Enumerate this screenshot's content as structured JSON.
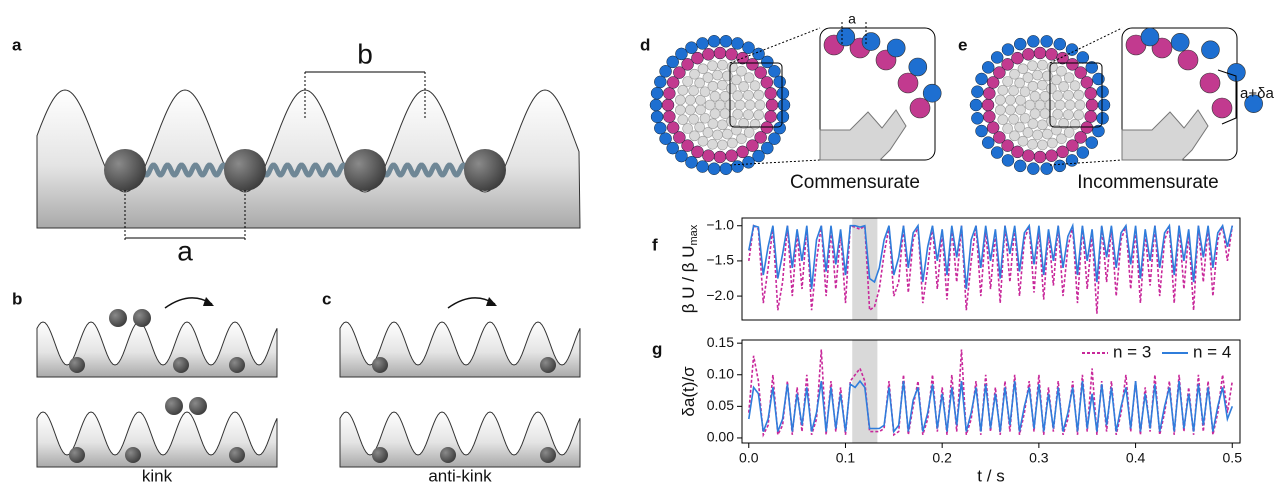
{
  "figure": {
    "panel_labels": [
      "a",
      "b",
      "c",
      "d",
      "e",
      "f",
      "g"
    ],
    "panel_a": {
      "spacing_b": "b",
      "spacing_a": "a"
    },
    "panel_b": {
      "caption": "kink"
    },
    "panel_c": {
      "caption": "anti-kink"
    },
    "panel_d": {
      "caption": "Commensurate",
      "inset_label": "a"
    },
    "panel_e": {
      "caption": "Incommensurate",
      "inset_label": "a+δa"
    }
  },
  "chart_data": [
    {
      "type": "line",
      "ylabel": "β U / β U",
      "ylabel_sub": "max",
      "x": [
        0,
        0.005,
        0.01,
        0.015,
        0.02,
        0.025,
        0.03,
        0.035,
        0.04,
        0.045,
        0.05,
        0.055,
        0.06,
        0.065,
        0.07,
        0.075,
        0.08,
        0.085,
        0.09,
        0.095,
        0.1,
        0.105,
        0.11,
        0.115,
        0.12,
        0.125,
        0.13,
        0.135,
        0.14,
        0.145,
        0.15,
        0.155,
        0.16,
        0.165,
        0.17,
        0.175,
        0.18,
        0.185,
        0.19,
        0.195,
        0.2,
        0.205,
        0.21,
        0.215,
        0.22,
        0.225,
        0.23,
        0.235,
        0.24,
        0.245,
        0.25,
        0.255,
        0.26,
        0.265,
        0.27,
        0.275,
        0.28,
        0.285,
        0.29,
        0.295,
        0.3,
        0.305,
        0.31,
        0.315,
        0.32,
        0.325,
        0.33,
        0.335,
        0.34,
        0.345,
        0.35,
        0.355,
        0.36,
        0.365,
        0.37,
        0.375,
        0.38,
        0.385,
        0.39,
        0.395,
        0.4,
        0.405,
        0.41,
        0.415,
        0.42,
        0.425,
        0.43,
        0.435,
        0.44,
        0.445,
        0.45,
        0.455,
        0.46,
        0.465,
        0.47,
        0.475,
        0.48,
        0.485,
        0.49,
        0.495,
        0.5
      ],
      "series": [
        {
          "name": "n = 3",
          "color": "#c8289a",
          "dashed": true,
          "values": [
            -1.5,
            -1.0,
            -1.05,
            -2.1,
            -1.6,
            -1.02,
            -2.2,
            -1.8,
            -1.0,
            -2.0,
            -1.1,
            -1.9,
            -1.02,
            -2.2,
            -1.5,
            -1.0,
            -2.0,
            -1.05,
            -1.9,
            -1.1,
            -2.1,
            -1.0,
            -1.02,
            -1.05,
            -1.0,
            -2.2,
            -2.15,
            -1.9,
            -1.4,
            -1.02,
            -2.0,
            -1.8,
            -1.0,
            -1.95,
            -1.2,
            -1.02,
            -2.1,
            -1.6,
            -1.0,
            -1.9,
            -1.1,
            -2.05,
            -1.02,
            -1.8,
            -1.0,
            -2.2,
            -1.5,
            -1.0,
            -2.0,
            -1.05,
            -1.9,
            -1.1,
            -2.1,
            -1.0,
            -1.8,
            -1.02,
            -2.0,
            -1.2,
            -1.0,
            -1.95,
            -1.05,
            -2.05,
            -1.1,
            -1.85,
            -1.0,
            -2.0,
            -1.3,
            -1.02,
            -2.1,
            -1.0,
            -1.9,
            -1.1,
            -2.25,
            -1.0,
            -1.8,
            -1.02,
            -2.0,
            -1.2,
            -1.0,
            -1.9,
            -1.05,
            -2.1,
            -1.1,
            -1.85,
            -1.0,
            -2.0,
            -1.2,
            -1.02,
            -2.1,
            -1.0,
            -1.9,
            -1.1,
            -2.2,
            -1.0,
            -1.8,
            -1.02,
            -2.0,
            -1.2,
            -1.0,
            -1.5,
            -1.0
          ]
        },
        {
          "name": "n = 4",
          "color": "#2f7ddb",
          "dashed": false,
          "values": [
            -1.35,
            -1.0,
            -1.02,
            -1.7,
            -1.3,
            -1.0,
            -1.75,
            -1.4,
            -1.0,
            -1.6,
            -1.05,
            -1.5,
            -1.0,
            -1.9,
            -1.2,
            -1.0,
            -1.65,
            -1.0,
            -1.55,
            -1.05,
            -1.7,
            -1.0,
            -1.0,
            -1.02,
            -1.0,
            -1.75,
            -1.8,
            -1.6,
            -1.2,
            -1.0,
            -1.7,
            -1.45,
            -1.0,
            -1.6,
            -1.1,
            -1.0,
            -1.8,
            -1.3,
            -1.0,
            -1.5,
            -1.05,
            -1.7,
            -1.0,
            -1.45,
            -1.0,
            -1.9,
            -1.2,
            -1.0,
            -1.6,
            -1.0,
            -1.5,
            -1.05,
            -1.75,
            -1.0,
            -1.4,
            -1.0,
            -1.65,
            -1.1,
            -1.0,
            -1.55,
            -1.0,
            -1.7,
            -1.05,
            -1.5,
            -1.0,
            -1.6,
            -1.15,
            -1.0,
            -1.7,
            -1.0,
            -1.5,
            -1.05,
            -1.8,
            -1.0,
            -1.45,
            -1.0,
            -1.6,
            -1.1,
            -1.0,
            -1.55,
            -1.0,
            -1.75,
            -1.05,
            -1.5,
            -1.0,
            -1.6,
            -1.1,
            -1.0,
            -1.7,
            -1.0,
            -1.5,
            -1.05,
            -1.8,
            -1.0,
            -1.45,
            -1.0,
            -1.6,
            -1.1,
            -1.0,
            -1.3,
            -1.0
          ]
        }
      ],
      "shaded_span": [
        0.107,
        0.133
      ],
      "xlim": [
        -0.007,
        0.508
      ],
      "ylim": [
        -2.34,
        -0.89
      ],
      "yticks": [
        {
          "value": -1,
          "label": "−1.0"
        },
        {
          "value": -1.5,
          "label": "−1.5"
        },
        {
          "value": -2,
          "label": "−2.0"
        }
      ]
    },
    {
      "type": "line",
      "ylabel": "δa(t)/σ",
      "xlabel": "t / s",
      "legend": "upper right",
      "x": [
        0,
        0.005,
        0.01,
        0.015,
        0.02,
        0.025,
        0.03,
        0.035,
        0.04,
        0.045,
        0.05,
        0.055,
        0.06,
        0.065,
        0.07,
        0.075,
        0.08,
        0.085,
        0.09,
        0.095,
        0.1,
        0.105,
        0.11,
        0.115,
        0.12,
        0.125,
        0.13,
        0.135,
        0.14,
        0.145,
        0.15,
        0.155,
        0.16,
        0.165,
        0.17,
        0.175,
        0.18,
        0.185,
        0.19,
        0.195,
        0.2,
        0.205,
        0.21,
        0.215,
        0.22,
        0.225,
        0.23,
        0.235,
        0.24,
        0.245,
        0.25,
        0.255,
        0.26,
        0.265,
        0.27,
        0.275,
        0.28,
        0.285,
        0.29,
        0.295,
        0.3,
        0.305,
        0.31,
        0.315,
        0.32,
        0.325,
        0.33,
        0.335,
        0.34,
        0.345,
        0.35,
        0.355,
        0.36,
        0.365,
        0.37,
        0.375,
        0.38,
        0.385,
        0.39,
        0.395,
        0.4,
        0.405,
        0.41,
        0.415,
        0.42,
        0.425,
        0.43,
        0.435,
        0.44,
        0.445,
        0.45,
        0.455,
        0.46,
        0.465,
        0.47,
        0.475,
        0.48,
        0.485,
        0.49,
        0.495,
        0.5
      ],
      "series": [
        {
          "name": "n = 3",
          "color": "#c8289a",
          "dashed": true,
          "values": [
            0.04,
            0.13,
            0.09,
            0.005,
            0.02,
            0.1,
            0.005,
            0.02,
            0.09,
            0.005,
            0.08,
            0.01,
            0.1,
            0.005,
            0.03,
            0.14,
            0.005,
            0.09,
            0.01,
            0.08,
            0.005,
            0.09,
            0.1,
            0.11,
            0.09,
            0.01,
            0.01,
            0.01,
            0.015,
            0.09,
            0.005,
            0.01,
            0.1,
            0.005,
            0.05,
            0.09,
            0.005,
            0.03,
            0.1,
            0.01,
            0.08,
            0.005,
            0.1,
            0.01,
            0.14,
            0.005,
            0.03,
            0.09,
            0.005,
            0.1,
            0.01,
            0.08,
            0.005,
            0.09,
            0.01,
            0.1,
            0.005,
            0.04,
            0.09,
            0.01,
            0.1,
            0.005,
            0.08,
            0.01,
            0.09,
            0.005,
            0.03,
            0.09,
            0.005,
            0.1,
            0.01,
            0.11,
            0.005,
            0.09,
            0.01,
            0.09,
            0.005,
            0.04,
            0.1,
            0.01,
            0.09,
            0.005,
            0.08,
            0.01,
            0.1,
            0.005,
            0.04,
            0.09,
            0.005,
            0.1,
            0.01,
            0.08,
            0.005,
            0.1,
            0.01,
            0.09,
            0.005,
            0.04,
            0.1,
            0.04,
            0.09
          ]
        },
        {
          "name": "n = 4",
          "color": "#2f7ddb",
          "dashed": false,
          "values": [
            0.03,
            0.08,
            0.07,
            0.01,
            0.03,
            0.08,
            0.01,
            0.03,
            0.085,
            0.01,
            0.07,
            0.02,
            0.08,
            0.01,
            0.04,
            0.09,
            0.01,
            0.08,
            0.015,
            0.07,
            0.01,
            0.085,
            0.08,
            0.09,
            0.08,
            0.015,
            0.015,
            0.015,
            0.02,
            0.08,
            0.01,
            0.02,
            0.09,
            0.01,
            0.06,
            0.08,
            0.01,
            0.04,
            0.085,
            0.015,
            0.07,
            0.01,
            0.08,
            0.02,
            0.09,
            0.01,
            0.04,
            0.08,
            0.01,
            0.085,
            0.015,
            0.07,
            0.01,
            0.08,
            0.02,
            0.09,
            0.01,
            0.05,
            0.08,
            0.015,
            0.085,
            0.01,
            0.07,
            0.015,
            0.08,
            0.01,
            0.04,
            0.08,
            0.01,
            0.09,
            0.015,
            0.07,
            0.01,
            0.085,
            0.02,
            0.08,
            0.01,
            0.05,
            0.08,
            0.015,
            0.09,
            0.01,
            0.07,
            0.015,
            0.085,
            0.01,
            0.05,
            0.08,
            0.01,
            0.09,
            0.015,
            0.07,
            0.01,
            0.085,
            0.02,
            0.08,
            0.01,
            0.05,
            0.08,
            0.03,
            0.05
          ]
        }
      ],
      "shaded_span": [
        0.107,
        0.133
      ],
      "xlim": [
        -0.007,
        0.508
      ],
      "ylim": [
        -0.008,
        0.155
      ],
      "xticks": [
        {
          "value": 0,
          "label": "0.0"
        },
        0.1,
        0.2,
        0.3,
        0.4,
        0.5
      ],
      "yticks": [
        {
          "value": 0,
          "label": "0.00"
        },
        {
          "value": 0.05,
          "label": "0.05"
        },
        {
          "value": 0.1,
          "label": "0.10"
        },
        {
          "value": 0.15,
          "label": "0.15"
        }
      ]
    }
  ]
}
